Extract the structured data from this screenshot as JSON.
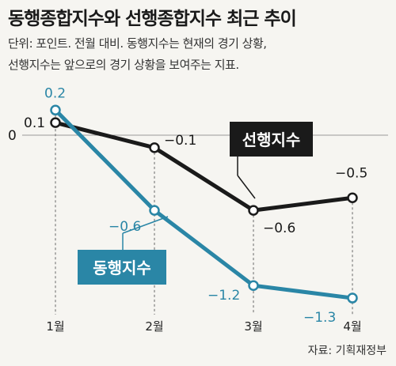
{
  "title": "동행종합지수와 선행종합지수 최근 추이",
  "subtitle_line1": "단위: 포인트. 전월 대비. 동행지수는 현재의 경기 상황,",
  "subtitle_line2": "선행지수는 앞으로의 경기 상황을 보여주는 지표.",
  "source": "자료: 기획재정부",
  "colors": {
    "leading": "#1a1a1a",
    "coincident": "#2a86a6",
    "background": "#f6f5f1",
    "gridline": "#999999"
  },
  "chart_data": {
    "type": "line",
    "title": "동행종합지수와 선행종합지수 최근 추이",
    "xlabel": "",
    "ylabel": "",
    "categories": [
      "1월",
      "2월",
      "3월",
      "4월"
    ],
    "ylim": [
      -1.4,
      0.25
    ],
    "zero_label": "0",
    "grid": false,
    "series": [
      {
        "name": "선행지수",
        "values": [
          0.1,
          -0.1,
          -0.6,
          -0.5
        ],
        "labels": [
          "0.1",
          "−0.1",
          "−0.6",
          "−0.5"
        ]
      },
      {
        "name": "동행지수",
        "values": [
          0.2,
          -0.6,
          -1.2,
          -1.3
        ],
        "labels": [
          "0.2",
          "−0.6",
          "−1.2",
          "−1.3"
        ]
      }
    ]
  }
}
